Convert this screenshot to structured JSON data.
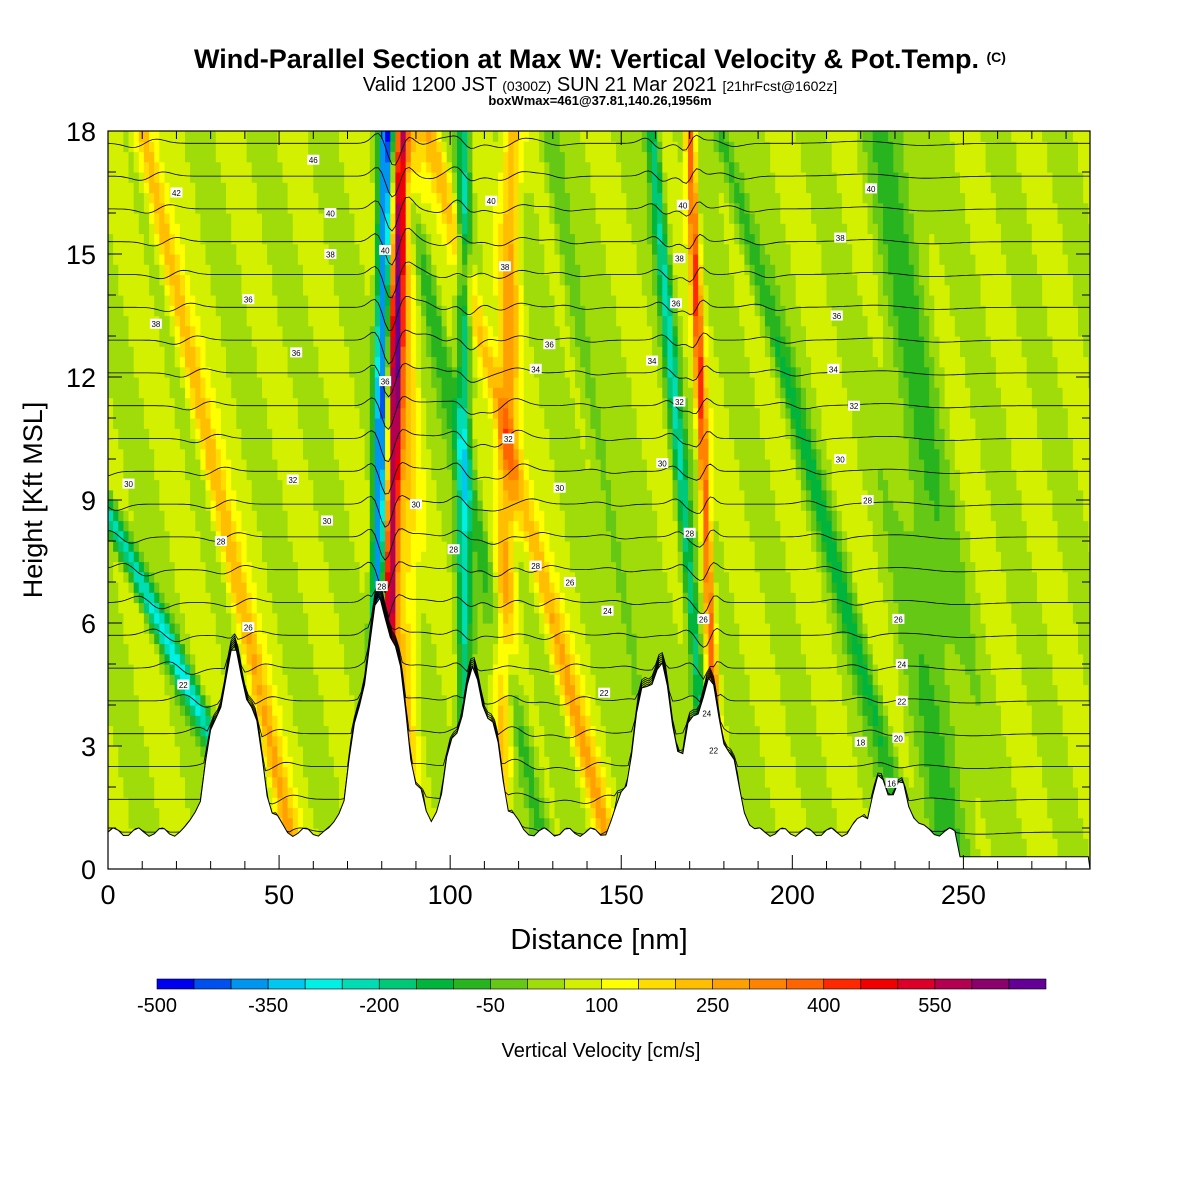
{
  "title": {
    "main": "Wind-Parallel Section at Max W: Vertical Velocity & Pot.Temp.",
    "main_suffix": "(C)",
    "valid_pre": "Valid 1200 JST",
    "valid_utc": "(0300Z)",
    "valid_post": "SUN 21 Mar 2021",
    "fcst": "[21hrFcst@1602z]",
    "box": "boxWmax=461@37.81,140.26,1956m"
  },
  "chart_data": {
    "type": "heatmap",
    "xlabel": "Distance [nm]",
    "ylabel": "Height [Kft MSL]",
    "xlim": [
      0,
      287
    ],
    "ylim": [
      0,
      18
    ],
    "xticks": [
      0,
      50,
      100,
      150,
      200,
      250
    ],
    "yticks": [
      0,
      3,
      6,
      9,
      12,
      15,
      18
    ],
    "colorbar": {
      "label": "Vertical Velocity [cm/s]",
      "levels": [
        -500,
        -450,
        -400,
        -350,
        -300,
        -250,
        -200,
        -150,
        -100,
        -50,
        0,
        50,
        100,
        150,
        200,
        250,
        300,
        350,
        400,
        450,
        500,
        550,
        600,
        650
      ],
      "tick_labels": [
        "-500",
        "-350",
        "-200",
        "-50",
        "100",
        "250",
        "400",
        "550"
      ],
      "colors": [
        "#0000f0",
        "#0050f0",
        "#0096f0",
        "#00c8f0",
        "#00f0e6",
        "#00dcb4",
        "#00c878",
        "#00b43c",
        "#28b41e",
        "#64c814",
        "#a0dc0a",
        "#d2f000",
        "#ffff00",
        "#ffdc00",
        "#ffbe00",
        "#ffa000",
        "#ff8200",
        "#ff6400",
        "#ff2800",
        "#f00000",
        "#dc0028",
        "#b40050",
        "#8c006e",
        "#640096"
      ]
    },
    "background_w_cm_s": 50,
    "ridges_nm": [
      {
        "center": 37,
        "height_kft": 4.5
      },
      {
        "center": 80,
        "height_kft": 5.8
      },
      {
        "center": 107,
        "height_kft": 4.0
      },
      {
        "center": 160,
        "height_kft": 4.3
      },
      {
        "center": 175,
        "height_kft": 3.8
      },
      {
        "center": 228,
        "height_kft": 1.5
      }
    ],
    "wave_bands": [
      {
        "x_base": 37,
        "tilt": -5.5,
        "w_cm_s": -300,
        "width": 3
      },
      {
        "x_base": 50,
        "tilt": -2.5,
        "w_cm_s": 200,
        "width": 3
      },
      {
        "x_base": 78,
        "tilt": 0.2,
        "w_cm_s": -480,
        "width": 2
      },
      {
        "x_base": 81,
        "tilt": 0.3,
        "w_cm_s": 520,
        "width": 2
      },
      {
        "x_base": 86,
        "tilt": 0.1,
        "w_cm_s": 150,
        "width": 4
      },
      {
        "x_base": 104,
        "tilt": 0.0,
        "w_cm_s": -250,
        "width": 2
      },
      {
        "x_base": 115,
        "tilt": 0.2,
        "w_cm_s": 200,
        "width": 3
      },
      {
        "x_base": 124,
        "tilt": -2.5,
        "w_cm_s": -150,
        "width": 3
      },
      {
        "x_base": 142,
        "tilt": -3.0,
        "w_cm_s": 200,
        "width": 3
      },
      {
        "x_base": 160,
        "tilt": -2.0,
        "w_cm_s": -100,
        "width": 3
      },
      {
        "x_base": 175,
        "tilt": -1.0,
        "w_cm_s": -250,
        "width": 2
      },
      {
        "x_base": 178,
        "tilt": -0.5,
        "w_cm_s": 350,
        "width": 1.5
      },
      {
        "x_base": 230,
        "tilt": -3.2,
        "w_cm_s": -150,
        "width": 3
      },
      {
        "x_base": 245,
        "tilt": -1.0,
        "w_cm_s": -100,
        "width": 8
      }
    ],
    "theta_contours_c": {
      "start": 10,
      "step": 2,
      "count": 22,
      "labels": [
        {
          "x": 6,
          "y": 9.4,
          "text": "30"
        },
        {
          "x": 14,
          "y": 13.3,
          "text": "38"
        },
        {
          "x": 20,
          "y": 16.5,
          "text": "42"
        },
        {
          "x": 22,
          "y": 4.5,
          "text": "22"
        },
        {
          "x": 41,
          "y": 13.9,
          "text": "36"
        },
        {
          "x": 33,
          "y": 8.0,
          "text": "28"
        },
        {
          "x": 41,
          "y": 5.9,
          "text": "26"
        },
        {
          "x": 60,
          "y": 17.3,
          "text": "46"
        },
        {
          "x": 65,
          "y": 16.0,
          "text": "40"
        },
        {
          "x": 65,
          "y": 15.0,
          "text": "38"
        },
        {
          "x": 55,
          "y": 12.6,
          "text": "36"
        },
        {
          "x": 54,
          "y": 9.5,
          "text": "32"
        },
        {
          "x": 64,
          "y": 8.5,
          "text": "30"
        },
        {
          "x": 81,
          "y": 15.1,
          "text": "40"
        },
        {
          "x": 81,
          "y": 11.9,
          "text": "36"
        },
        {
          "x": 80,
          "y": 6.9,
          "text": "28"
        },
        {
          "x": 90,
          "y": 8.9,
          "text": "30"
        },
        {
          "x": 101,
          "y": 7.8,
          "text": "28"
        },
        {
          "x": 112,
          "y": 16.3,
          "text": "40"
        },
        {
          "x": 116,
          "y": 14.7,
          "text": "38"
        },
        {
          "x": 129,
          "y": 12.8,
          "text": "36"
        },
        {
          "x": 125,
          "y": 12.2,
          "text": "34"
        },
        {
          "x": 117,
          "y": 10.5,
          "text": "32"
        },
        {
          "x": 132,
          "y": 9.3,
          "text": "30"
        },
        {
          "x": 125,
          "y": 7.4,
          "text": "28"
        },
        {
          "x": 135,
          "y": 7.0,
          "text": "26"
        },
        {
          "x": 146,
          "y": 6.3,
          "text": "24"
        },
        {
          "x": 145,
          "y": 4.3,
          "text": "22"
        },
        {
          "x": 168,
          "y": 16.2,
          "text": "40"
        },
        {
          "x": 167,
          "y": 14.9,
          "text": "38"
        },
        {
          "x": 166,
          "y": 13.8,
          "text": "36"
        },
        {
          "x": 159,
          "y": 12.4,
          "text": "34"
        },
        {
          "x": 167,
          "y": 11.4,
          "text": "32"
        },
        {
          "x": 162,
          "y": 9.9,
          "text": "30"
        },
        {
          "x": 170,
          "y": 8.2,
          "text": "28"
        },
        {
          "x": 174,
          "y": 6.1,
          "text": "26"
        },
        {
          "x": 175,
          "y": 3.8,
          "text": "24"
        },
        {
          "x": 177,
          "y": 2.9,
          "text": "22"
        },
        {
          "x": 223,
          "y": 16.6,
          "text": "40"
        },
        {
          "x": 214,
          "y": 15.4,
          "text": "38"
        },
        {
          "x": 213,
          "y": 13.5,
          "text": "36"
        },
        {
          "x": 212,
          "y": 12.2,
          "text": "34"
        },
        {
          "x": 218,
          "y": 11.3,
          "text": "32"
        },
        {
          "x": 214,
          "y": 10.0,
          "text": "30"
        },
        {
          "x": 222,
          "y": 9.0,
          "text": "28"
        },
        {
          "x": 231,
          "y": 6.1,
          "text": "26"
        },
        {
          "x": 232,
          "y": 5.0,
          "text": "24"
        },
        {
          "x": 232,
          "y": 4.1,
          "text": "22"
        },
        {
          "x": 220,
          "y": 3.1,
          "text": "18"
        },
        {
          "x": 231,
          "y": 3.2,
          "text": "20"
        },
        {
          "x": 229,
          "y": 2.1,
          "text": "16"
        }
      ]
    },
    "grid": false,
    "legend": "bottom colorbar"
  }
}
